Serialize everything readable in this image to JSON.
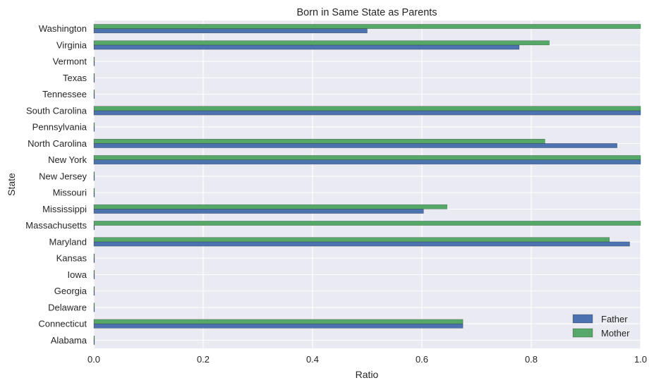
{
  "chart_data": {
    "type": "bar",
    "orientation": "horizontal",
    "title": "Born in Same State as Parents",
    "xlabel": "Ratio",
    "ylabel": "State",
    "xlim": [
      0,
      1.0
    ],
    "xticks": [
      "0.0",
      "0.2",
      "0.4",
      "0.6",
      "0.8",
      "1.0"
    ],
    "grid": true,
    "legend_position": "bottom-right",
    "categories": [
      "Alabama",
      "Connecticut",
      "Delaware",
      "Georgia",
      "Iowa",
      "Kansas",
      "Maryland",
      "Massachusetts",
      "Mississippi",
      "Missouri",
      "New Jersey",
      "New York",
      "North Carolina",
      "Pennsylvania",
      "South Carolina",
      "Tennessee",
      "Texas",
      "Vermont",
      "Virginia",
      "Washington"
    ],
    "series": [
      {
        "name": "Father",
        "color": "#4c72b0",
        "values": [
          0,
          0.675,
          0,
          0,
          0,
          0,
          0.98,
          0,
          0.603,
          0,
          0,
          1.0,
          0.957,
          0,
          1.0,
          0,
          0,
          0,
          0.778,
          0.5
        ]
      },
      {
        "name": "Mother",
        "color": "#55a868",
        "values": [
          0,
          0.675,
          0,
          0,
          0,
          0,
          0.943,
          1.0,
          0.646,
          0,
          0,
          1.0,
          0.825,
          0,
          1.0,
          0,
          0,
          0,
          0.833,
          1.0
        ]
      }
    ],
    "colors": {
      "plot_background": "#eaeaf2",
      "grid": "#ffffff"
    }
  }
}
